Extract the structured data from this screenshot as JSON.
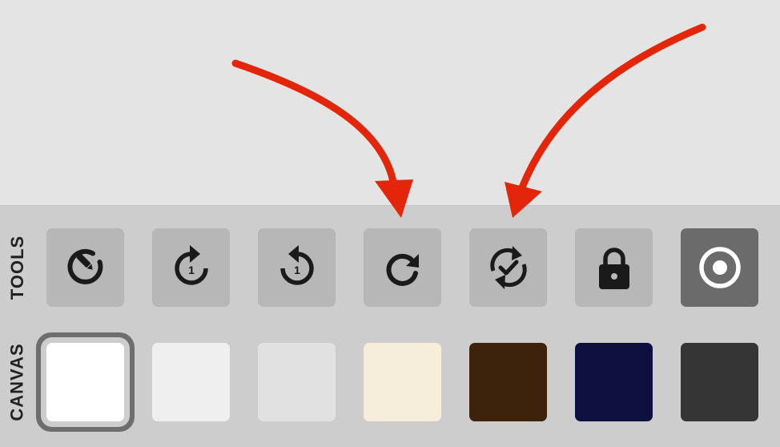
{
  "panel": {
    "tools_label": "TOOLS",
    "canvas_label": "CANVAS"
  },
  "tools": [
    {
      "name": "pencil-circle",
      "icon": "pencil-circle-icon",
      "active": false
    },
    {
      "name": "redo-one",
      "icon": "redo-one-icon",
      "number": "1",
      "active": false
    },
    {
      "name": "undo-one",
      "icon": "undo-one-icon",
      "number": "1",
      "active": false
    },
    {
      "name": "redo",
      "icon": "redo-icon",
      "active": false
    },
    {
      "name": "sync-check",
      "icon": "sync-check-icon",
      "active": false
    },
    {
      "name": "lock",
      "icon": "lock-icon",
      "active": false
    },
    {
      "name": "target",
      "icon": "target-icon",
      "active": true
    }
  ],
  "canvas_colors": [
    {
      "name": "white",
      "color": "#ffffff",
      "selected": true
    },
    {
      "name": "light-gray",
      "color": "#efefef",
      "selected": false
    },
    {
      "name": "silver",
      "color": "#e1e1e1",
      "selected": false
    },
    {
      "name": "cream",
      "color": "#f6eeda",
      "selected": false
    },
    {
      "name": "brown",
      "color": "#3d230b",
      "selected": false
    },
    {
      "name": "navy",
      "color": "#0e1040",
      "selected": false
    },
    {
      "name": "charcoal",
      "color": "#353535",
      "selected": false
    }
  ],
  "colors": {
    "annotation_arrow": "#e32609",
    "icon_dark": "#1a1a1a",
    "icon_light": "#ffffff"
  }
}
